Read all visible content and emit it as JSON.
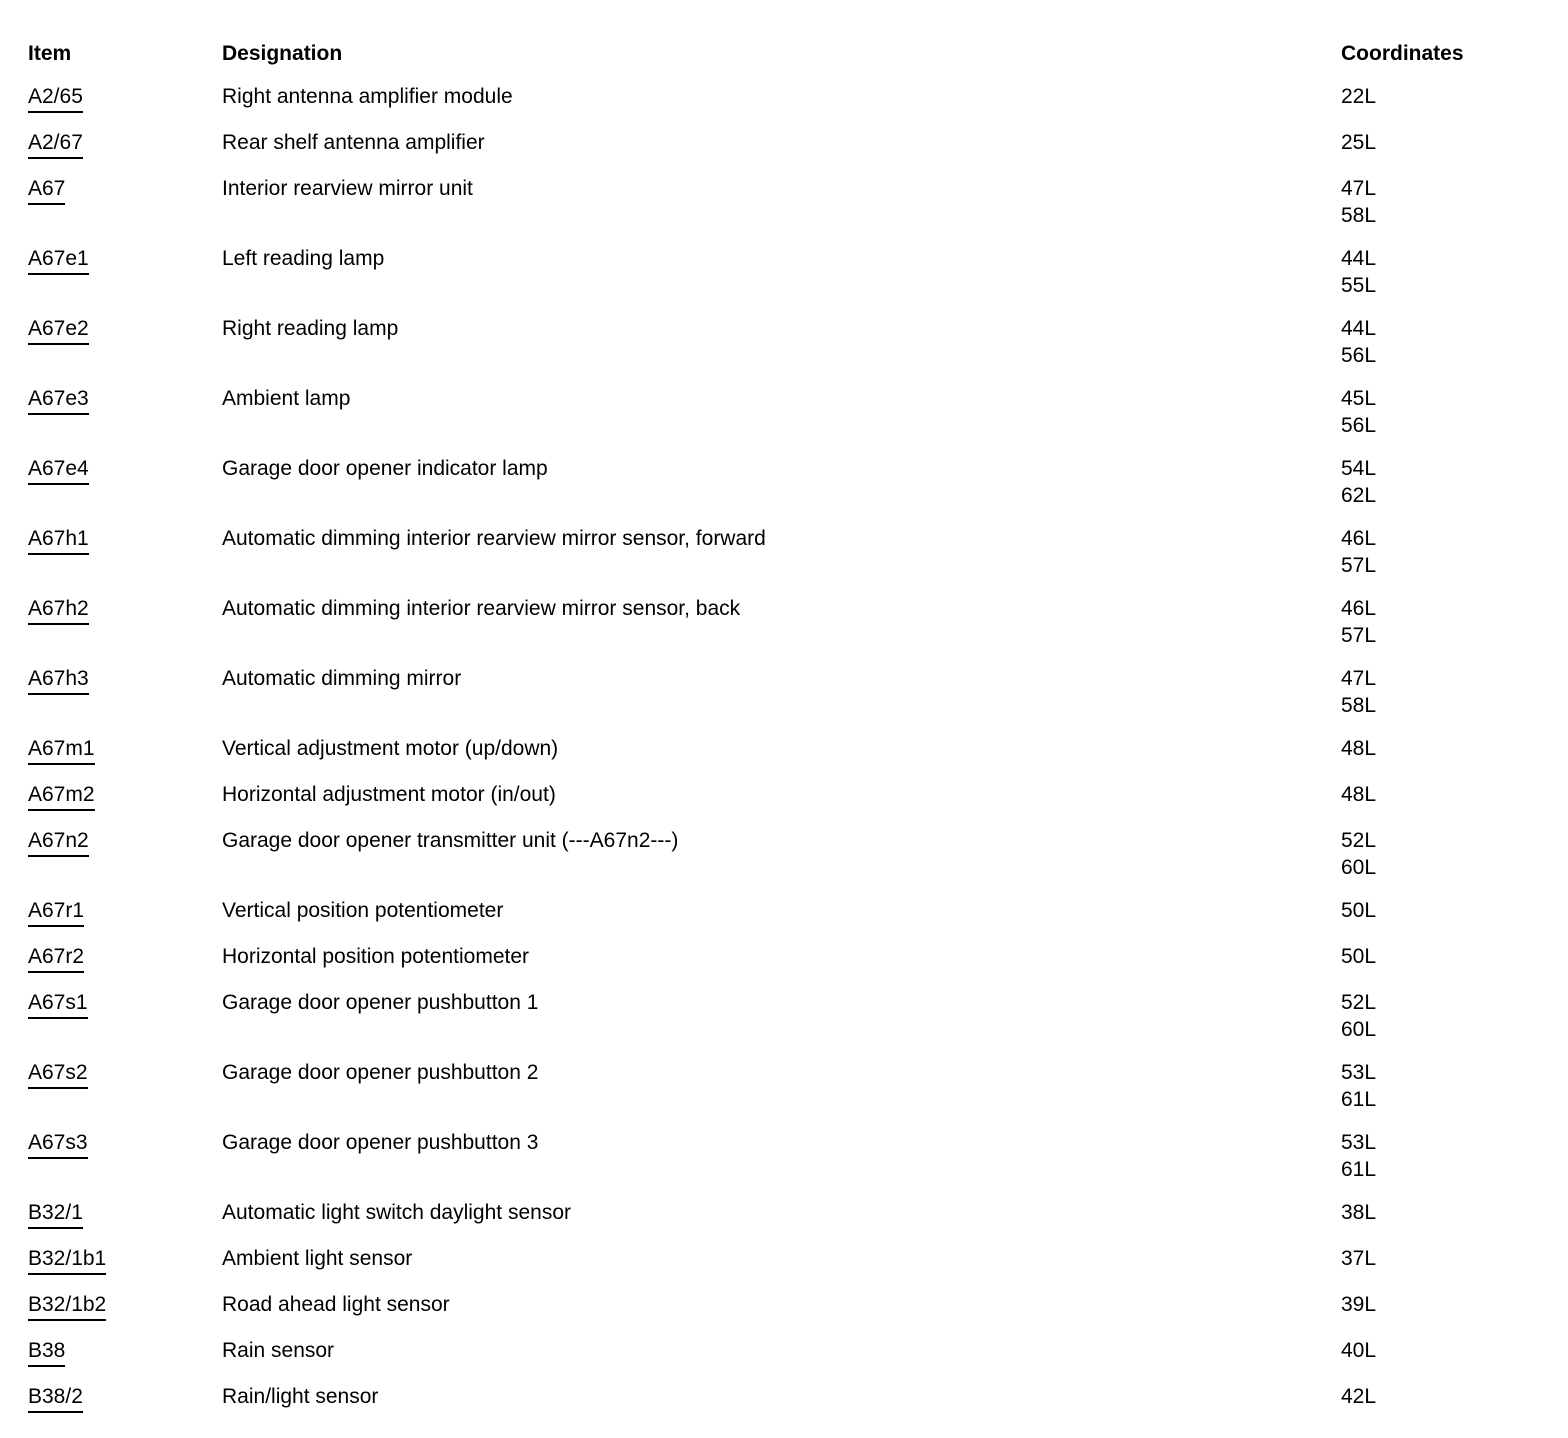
{
  "page": {
    "background_color": "#ffffff",
    "text_color": "#000000"
  },
  "table": {
    "headers": {
      "item": "Item",
      "designation": "Designation",
      "coordinates": "Coordinates"
    },
    "rows": [
      {
        "item": "A2/65",
        "designation": "Right antenna amplifier module",
        "coordinates": [
          "22L"
        ]
      },
      {
        "item": "A2/67",
        "designation": "Rear shelf antenna amplifier",
        "coordinates": [
          "25L"
        ]
      },
      {
        "item": "A67",
        "designation": "Interior rearview mirror unit",
        "coordinates": [
          "47L",
          "58L"
        ]
      },
      {
        "item": "A67e1",
        "designation": "Left reading lamp",
        "coordinates": [
          "44L",
          "55L"
        ]
      },
      {
        "item": "A67e2",
        "designation": "Right reading lamp",
        "coordinates": [
          "44L",
          "56L"
        ]
      },
      {
        "item": "A67e3",
        "designation": "Ambient lamp",
        "coordinates": [
          "45L",
          "56L"
        ]
      },
      {
        "item": "A67e4",
        "designation": "Garage door opener indicator lamp",
        "coordinates": [
          "54L",
          "62L"
        ]
      },
      {
        "item": "A67h1",
        "designation": "Automatic dimming interior rearview mirror sensor, forward",
        "coordinates": [
          "46L",
          "57L"
        ]
      },
      {
        "item": "A67h2",
        "designation": "Automatic dimming interior rearview mirror sensor, back",
        "coordinates": [
          "46L",
          "57L"
        ]
      },
      {
        "item": "A67h3",
        "designation": "Automatic dimming mirror",
        "coordinates": [
          "47L",
          "58L"
        ]
      },
      {
        "item": "A67m1",
        "designation": "Vertical adjustment motor (up/down)",
        "coordinates": [
          "48L"
        ]
      },
      {
        "item": "A67m2",
        "designation": "Horizontal adjustment motor (in/out)",
        "coordinates": [
          "48L"
        ]
      },
      {
        "item": "A67n2",
        "designation": "Garage door opener transmitter unit (---A67n2---)",
        "coordinates": [
          "52L",
          "60L"
        ]
      },
      {
        "item": "A67r1",
        "designation": "Vertical position potentiometer",
        "coordinates": [
          "50L"
        ]
      },
      {
        "item": "A67r2",
        "designation": "Horizontal position potentiometer",
        "coordinates": [
          "50L"
        ]
      },
      {
        "item": "A67s1",
        "designation": "Garage door opener pushbutton 1",
        "coordinates": [
          "52L",
          "60L"
        ]
      },
      {
        "item": "A67s2",
        "designation": "Garage door opener pushbutton 2",
        "coordinates": [
          "53L",
          "61L"
        ]
      },
      {
        "item": "A67s3",
        "designation": "Garage door opener pushbutton 3",
        "coordinates": [
          "53L",
          "61L"
        ]
      },
      {
        "item": "B32/1",
        "designation": "Automatic light switch daylight sensor",
        "coordinates": [
          "38L"
        ]
      },
      {
        "item": "B32/1b1",
        "designation": "Ambient light sensor",
        "coordinates": [
          "37L"
        ]
      },
      {
        "item": "B32/1b2",
        "designation": "Road ahead light sensor",
        "coordinates": [
          "39L"
        ]
      },
      {
        "item": "B38",
        "designation": "Rain sensor",
        "coordinates": [
          "40L"
        ]
      },
      {
        "item": "B38/2",
        "designation": "Rain/light sensor",
        "coordinates": [
          "42L"
        ]
      }
    ]
  }
}
